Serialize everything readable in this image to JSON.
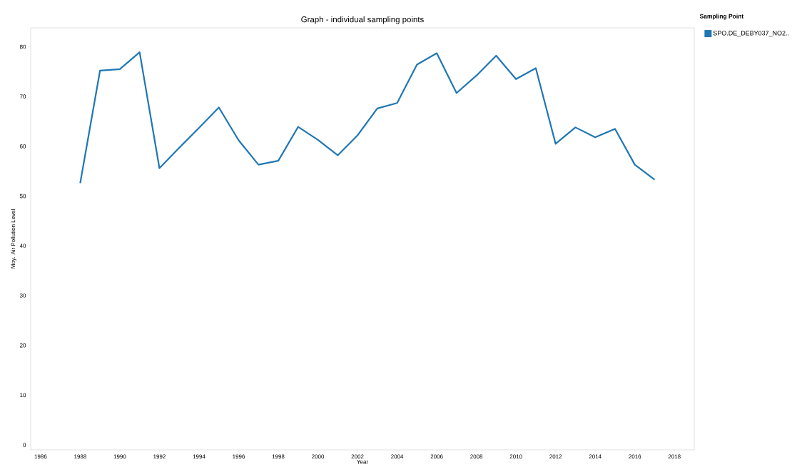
{
  "chart_data": {
    "type": "line",
    "title": "Graph - individual sampling points",
    "xlabel": "Year",
    "ylabel": "Moy. Air Pollution Level",
    "legend_title": "Sampling Point",
    "legend": "top right",
    "x": [
      1988,
      1989,
      1990,
      1991,
      1992,
      1993,
      1994,
      1995,
      1996,
      1997,
      1998,
      1999,
      2000,
      2001,
      2002,
      2003,
      2004,
      2005,
      2006,
      2007,
      2008,
      2009,
      2010,
      2011,
      2012,
      2013,
      2014,
      2015,
      2016,
      2017
    ],
    "series": [
      {
        "name": "SPO.DE_DEBY037_NO2..",
        "color": "#1f77b4",
        "values": [
          52.6,
          75.2,
          75.5,
          78.9,
          55.6,
          59.7,
          63.7,
          67.8,
          61.2,
          56.3,
          57.1,
          63.9,
          61.3,
          58.2,
          62.2,
          67.6,
          68.7,
          76.4,
          78.7,
          70.7,
          74.2,
          78.2,
          73.5,
          75.7,
          60.5,
          63.8,
          61.8,
          63.5,
          56.3,
          53.3
        ]
      }
    ],
    "xlim": [
      1985.5,
      2019
    ],
    "ylim": [
      -1,
      83.8
    ],
    "xticks": [
      1986,
      1988,
      1990,
      1992,
      1994,
      1996,
      1998,
      2000,
      2002,
      2004,
      2006,
      2008,
      2010,
      2012,
      2014,
      2016,
      2018
    ],
    "yticks": [
      0,
      10,
      20,
      30,
      40,
      50,
      60,
      70,
      80
    ],
    "grid": false,
    "marker": "none",
    "line_style": "solid"
  }
}
